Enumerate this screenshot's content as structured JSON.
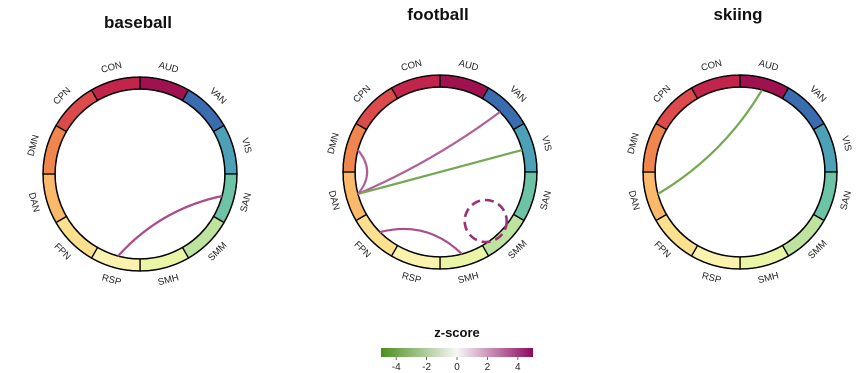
{
  "chart_data": {
    "type": "chord",
    "networks": [
      "AUD",
      "VAN",
      "VIS",
      "SAN",
      "SMM",
      "SMH",
      "RSP",
      "FPN",
      "DAN",
      "DMN",
      "CPN",
      "CON"
    ],
    "network_colors": {
      "AUD": "#a0114f",
      "VAN": "#3a6db0",
      "VIS": "#4da1b7",
      "SAN": "#6cc3a6",
      "SMM": "#bde39e",
      "SMH": "#eaf6a6",
      "RSP": "#fbf3ad",
      "FPN": "#fde08d",
      "DAN": "#fbb96a",
      "DMN": "#f0864e",
      "CPN": "#dc4b4c",
      "CON": "#c2244c"
    },
    "panels": [
      {
        "title": "baseball",
        "connections": [
          {
            "from": "SAN",
            "to": "RSP",
            "z": 3.6
          }
        ]
      },
      {
        "title": "football",
        "connections": [
          {
            "from": "VAN",
            "to": "DAN",
            "z": 3.2
          },
          {
            "from": "VIS",
            "to": "DAN",
            "z": -3.8
          },
          {
            "from": "DMN",
            "to": "DAN",
            "z": 3.2
          },
          {
            "from": "FPN",
            "to": "SMH",
            "z": 3.6
          },
          {
            "from": "SMM",
            "to": "SMM",
            "z": 4.2,
            "style": "dashed"
          }
        ]
      },
      {
        "title": "skiing",
        "connections": [
          {
            "from": "AUD",
            "to": "DAN",
            "z": -3.8
          }
        ]
      }
    ],
    "colorbar": {
      "title": "z-score",
      "range": [
        -5,
        5
      ],
      "ticks": [
        "-4",
        "-2",
        "0",
        "2",
        "4"
      ],
      "low_color": "#4a8f1e",
      "mid_color": "#f7f7f7",
      "high_color": "#8b0a5f"
    }
  }
}
